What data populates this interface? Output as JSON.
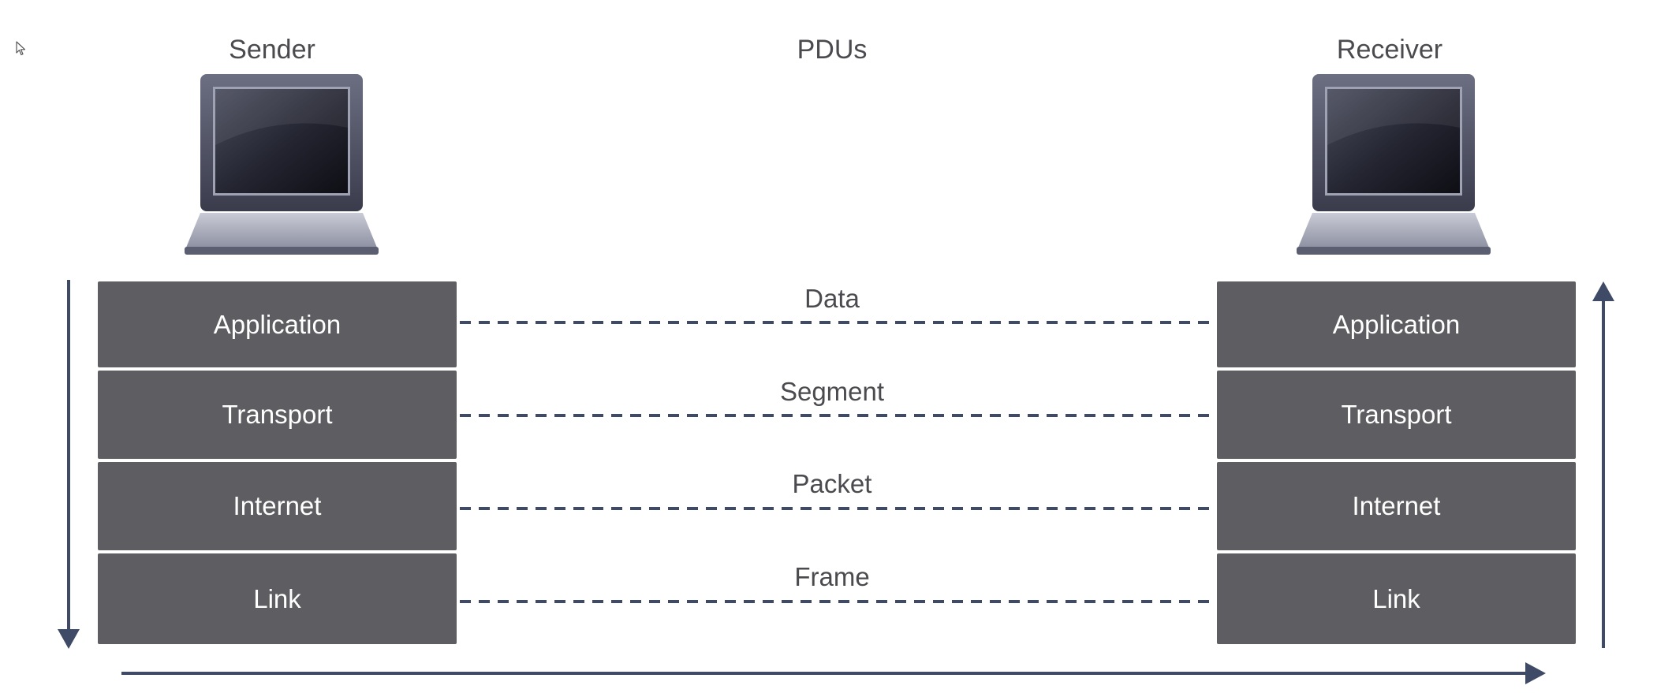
{
  "colors": {
    "layer_fill": "#5e5e62",
    "layer_text": "#ffffff",
    "label_text": "#4a4a4f",
    "arrow": "#3f4b66",
    "dash": "#3f4b66"
  },
  "icons": {
    "cursor": "mouse-pointer-icon",
    "sender_device": "laptop-icon",
    "receiver_device": "laptop-icon"
  },
  "headings": {
    "sender": "Sender",
    "pdus": "PDUs",
    "receiver": "Receiver"
  },
  "sender_layers": [
    "Application",
    "Transport",
    "Internet",
    "Link"
  ],
  "receiver_layers": [
    "Application",
    "Transport",
    "Internet",
    "Link"
  ],
  "pdus": [
    "Data",
    "Segment",
    "Packet",
    "Frame"
  ]
}
